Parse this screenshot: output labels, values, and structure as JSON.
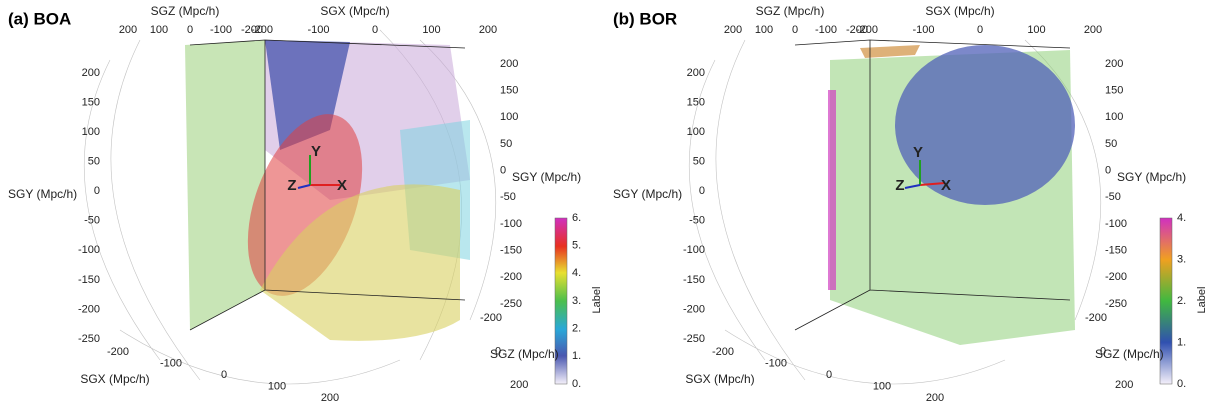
{
  "panels": [
    {
      "title": "(a) BOA",
      "axes": [
        {
          "label": "SGZ (Mpc/h)",
          "ticks": [
            200,
            100,
            0,
            -100,
            -200
          ]
        },
        {
          "label": "SGX (Mpc/h)",
          "ticks": [
            -200,
            -100,
            0,
            100,
            200
          ]
        },
        {
          "label": "SGY (Mpc/h)",
          "ticks": [
            200,
            150,
            100,
            50,
            0,
            -50,
            -100,
            -150,
            -200,
            -250
          ]
        },
        {
          "label": "SGY (Mpc/h)",
          "ticks": [
            200,
            150,
            100,
            50,
            0,
            -50,
            -100,
            -150,
            -200,
            -250
          ]
        },
        {
          "label": "SGX (Mpc/h)",
          "ticks": [
            -200,
            -100,
            0,
            100,
            200
          ]
        },
        {
          "label": "SGZ (Mpc/h)",
          "ticks": [
            -200,
            0,
            200
          ]
        }
      ],
      "triad": [
        "X",
        "Y",
        "Z"
      ],
      "colorbar": {
        "title": "Label",
        "ticks": [
          "6.",
          "5.",
          "4.",
          "3.",
          "2.",
          "1.",
          "0."
        ]
      }
    },
    {
      "title": "(b) BOR",
      "axes": [
        {
          "label": "SGZ (Mpc/h)",
          "ticks": [
            200,
            100,
            0,
            -100,
            -200
          ]
        },
        {
          "label": "SGX (Mpc/h)",
          "ticks": [
            -200,
            -100,
            0,
            100,
            200
          ]
        },
        {
          "label": "SGY (Mpc/h)",
          "ticks": [
            200,
            150,
            100,
            50,
            0,
            -50,
            -100,
            -150,
            -200,
            -250
          ]
        },
        {
          "label": "SGY (Mpc/h)",
          "ticks": [
            200,
            150,
            100,
            50,
            0,
            -50,
            -100,
            -150,
            -200,
            -250
          ]
        },
        {
          "label": "SGX (Mpc/h)",
          "ticks": [
            -200,
            -100,
            0,
            100,
            200
          ]
        },
        {
          "label": "SGZ (Mpc/h)",
          "ticks": [
            -200,
            0,
            200
          ]
        }
      ],
      "triad": [
        "X",
        "Y",
        "Z"
      ],
      "colorbar": {
        "title": "Label",
        "ticks": [
          "4.",
          "3.",
          "2.",
          "1.",
          "0."
        ]
      }
    }
  ]
}
